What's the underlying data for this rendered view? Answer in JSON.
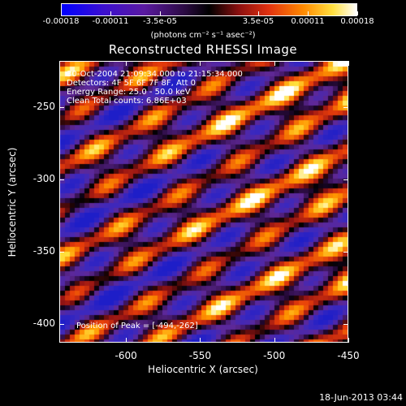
{
  "colorbar": {
    "ticks": [
      "-0.00018",
      "-0.00011",
      "-3.5e-05",
      "3.5e-05",
      "0.00011",
      "0.00018"
    ],
    "units": "(photons cm⁻² s⁻¹ asec⁻²)"
  },
  "title": "Reconstructed RHESSI Image",
  "annotation": {
    "time_range": "30-Oct-2004 21:09:34.000 to 21:15:34.000",
    "detectors": "Detectors: 4F 5F 6F 7F 8F, Att 0",
    "energy": "Energy Range: 25.0 - 50.0 keV",
    "clean": "Clean     Total counts: 6.86E+03",
    "peak": "Position of Peak = [-494,-262]"
  },
  "axes": {
    "x_label": "Heliocentric X (arcsec)",
    "y_label": "Heliocentric Y (arcsec)",
    "x_ticks": [
      "-600",
      "-550",
      "-500",
      "-450"
    ],
    "y_ticks": [
      "-250",
      "-300",
      "-350",
      "-400"
    ],
    "x_range": [
      -645,
      -450
    ],
    "y_range": [
      -413,
      -218
    ]
  },
  "footer": "18-Jun-2013 03:44",
  "colors": {
    "background": "#000000",
    "foreground": "#ffffff"
  }
}
